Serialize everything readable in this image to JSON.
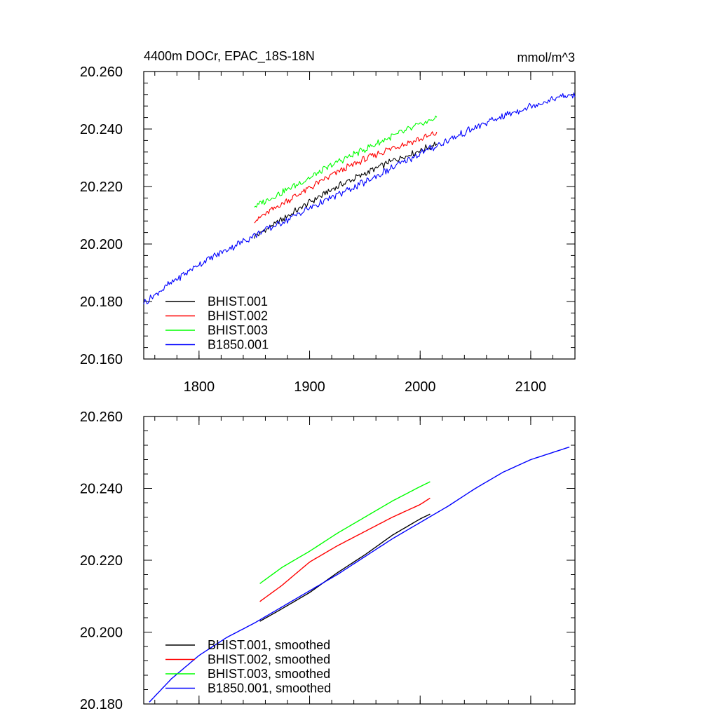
{
  "chart_data": [
    {
      "type": "line",
      "title": "4400m DOCr, EPAC_18S-18N",
      "units": "mmol/m^3",
      "xlim": [
        1750,
        2140
      ],
      "ylim": [
        20.16,
        20.26
      ],
      "xticks": [
        1800,
        1900,
        2000,
        2100
      ],
      "xtick_labels": [
        "1800",
        "1900",
        "2000",
        "2100"
      ],
      "yticks": [
        20.16,
        20.18,
        20.2,
        20.22,
        20.24,
        20.26
      ],
      "ytick_labels": [
        "20.160",
        "20.180",
        "20.200",
        "20.220",
        "20.240",
        "20.260"
      ],
      "grid": false,
      "legend_position": "bottom-left",
      "series": [
        {
          "name": "BHIST.001",
          "color": "#000000",
          "x": [
            1850,
            1875,
            1900,
            1925,
            1950,
            1975,
            2000,
            2015
          ],
          "y": [
            20.2025,
            20.2085,
            20.2145,
            20.22,
            20.2245,
            20.229,
            20.2325,
            20.235
          ]
        },
        {
          "name": "BHIST.002",
          "color": "#ff0000",
          "x": [
            1850,
            1875,
            1900,
            1925,
            1950,
            1975,
            2000,
            2015
          ],
          "y": [
            20.208,
            20.214,
            20.2195,
            20.225,
            20.2295,
            20.2335,
            20.2365,
            20.2385
          ]
        },
        {
          "name": "BHIST.003",
          "color": "#00ff00",
          "x": [
            1850,
            1875,
            1900,
            1925,
            1950,
            1975,
            2000,
            2015
          ],
          "y": [
            20.213,
            20.218,
            20.223,
            20.2285,
            20.233,
            20.2375,
            20.2415,
            20.244
          ]
        },
        {
          "name": "B1850.001",
          "color": "#0000ff",
          "x": [
            1750,
            1775,
            1800,
            1825,
            1850,
            1875,
            1900,
            1925,
            1950,
            1975,
            2000,
            2025,
            2050,
            2075,
            2100,
            2125,
            2140
          ],
          "y": [
            20.1795,
            20.1865,
            20.193,
            20.198,
            20.203,
            20.2075,
            20.2125,
            20.217,
            20.2215,
            20.2265,
            20.2315,
            20.236,
            20.2405,
            20.2445,
            20.248,
            20.251,
            20.252
          ]
        }
      ]
    },
    {
      "type": "line",
      "title": "",
      "xlim": [
        1750,
        2140
      ],
      "ylim": [
        20.18,
        20.26
      ],
      "xticks": [
        1800,
        1900,
        2000,
        2100
      ],
      "xtick_labels": [],
      "yticks": [
        20.18,
        20.2,
        20.22,
        20.24,
        20.26
      ],
      "ytick_labels": [
        "20.180",
        "20.200",
        "20.220",
        "20.240",
        "20.260"
      ],
      "grid": false,
      "legend_position": "bottom-left",
      "series": [
        {
          "name": "BHIST.001, smoothed",
          "color": "#000000",
          "x": [
            1855,
            1875,
            1900,
            1925,
            1950,
            1975,
            2000,
            2010
          ],
          "y": [
            20.203,
            20.2065,
            20.211,
            20.2165,
            20.2215,
            20.227,
            20.2315,
            20.233
          ]
        },
        {
          "name": "BHIST.002, smoothed",
          "color": "#ff0000",
          "x": [
            1855,
            1875,
            1900,
            1925,
            1950,
            1975,
            2000,
            2010
          ],
          "y": [
            20.2085,
            20.213,
            20.2195,
            20.224,
            20.228,
            20.232,
            20.2355,
            20.2375
          ]
        },
        {
          "name": "BHIST.003, smoothed",
          "color": "#00ff00",
          "x": [
            1855,
            1875,
            1900,
            1925,
            1950,
            1975,
            2000,
            2010
          ],
          "y": [
            20.2135,
            20.218,
            20.2225,
            20.2275,
            20.232,
            20.2365,
            20.2405,
            20.242
          ]
        },
        {
          "name": "B1850.001, smoothed",
          "color": "#0000ff",
          "x": [
            1755,
            1775,
            1800,
            1825,
            1850,
            1875,
            1900,
            1925,
            1950,
            1975,
            2000,
            2025,
            2050,
            2075,
            2100,
            2125,
            2135
          ],
          "y": [
            20.1805,
            20.187,
            20.1935,
            20.1985,
            20.2025,
            20.207,
            20.2115,
            20.216,
            20.221,
            20.226,
            20.2305,
            20.235,
            20.24,
            20.2445,
            20.248,
            20.2505,
            20.2515
          ]
        }
      ]
    }
  ]
}
